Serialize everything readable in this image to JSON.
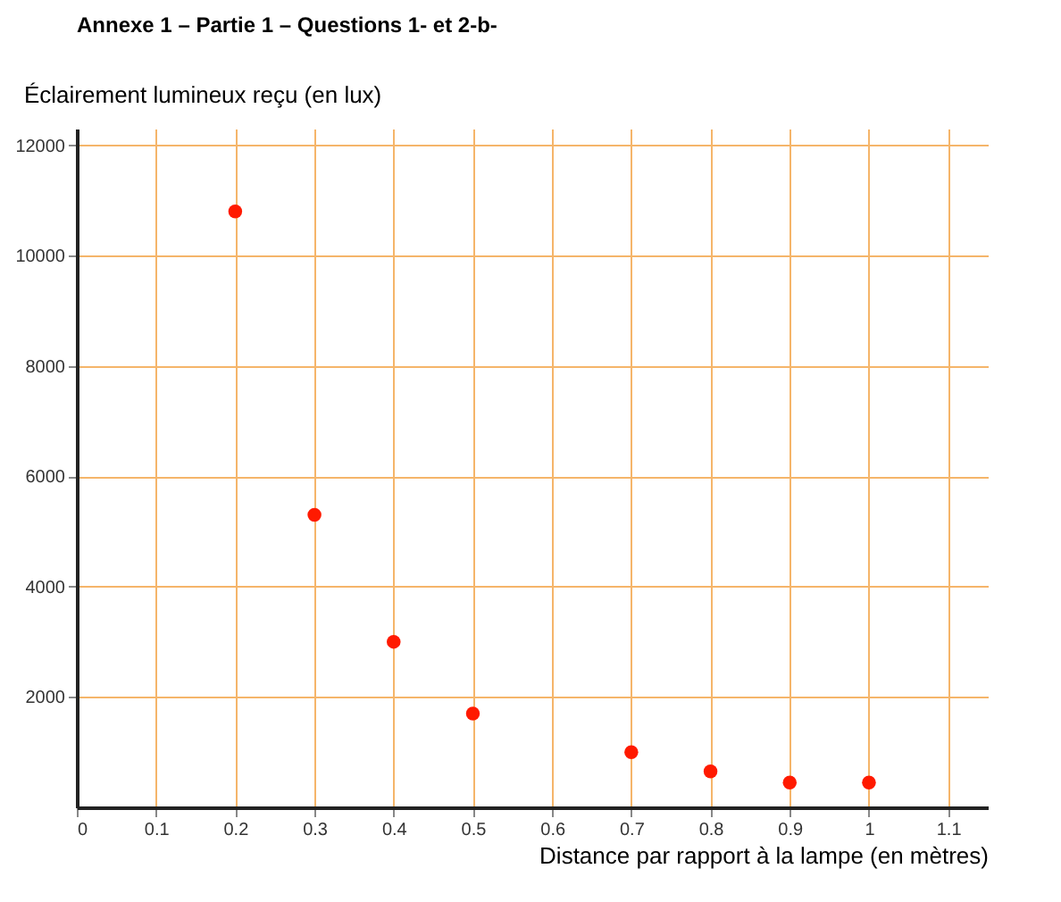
{
  "chart_data": {
    "type": "scatter",
    "title": "Annexe 1 – Partie 1 – Questions 1- et 2-b-",
    "xlabel": "Distance par rapport à la lampe (en mètres)",
    "ylabel": "Éclairement lumineux reçu (en lux)",
    "x": [
      0.2,
      0.3,
      0.4,
      0.5,
      0.7,
      0.8,
      0.9,
      1.0
    ],
    "series": [
      {
        "color": "#ff1a00",
        "values": [
          10800,
          5300,
          3000,
          1700,
          1000,
          650,
          450,
          450
        ]
      }
    ],
    "xlim": [
      0,
      1.15
    ],
    "ylim": [
      0,
      12300
    ],
    "xticks": [
      0,
      0.1,
      0.2,
      0.3,
      0.4,
      0.5,
      0.6,
      0.7,
      0.8,
      0.9,
      1,
      1.1
    ],
    "yticks": [
      2000,
      4000,
      6000,
      8000,
      10000,
      12000
    ],
    "grid": true,
    "marker": "circle"
  }
}
